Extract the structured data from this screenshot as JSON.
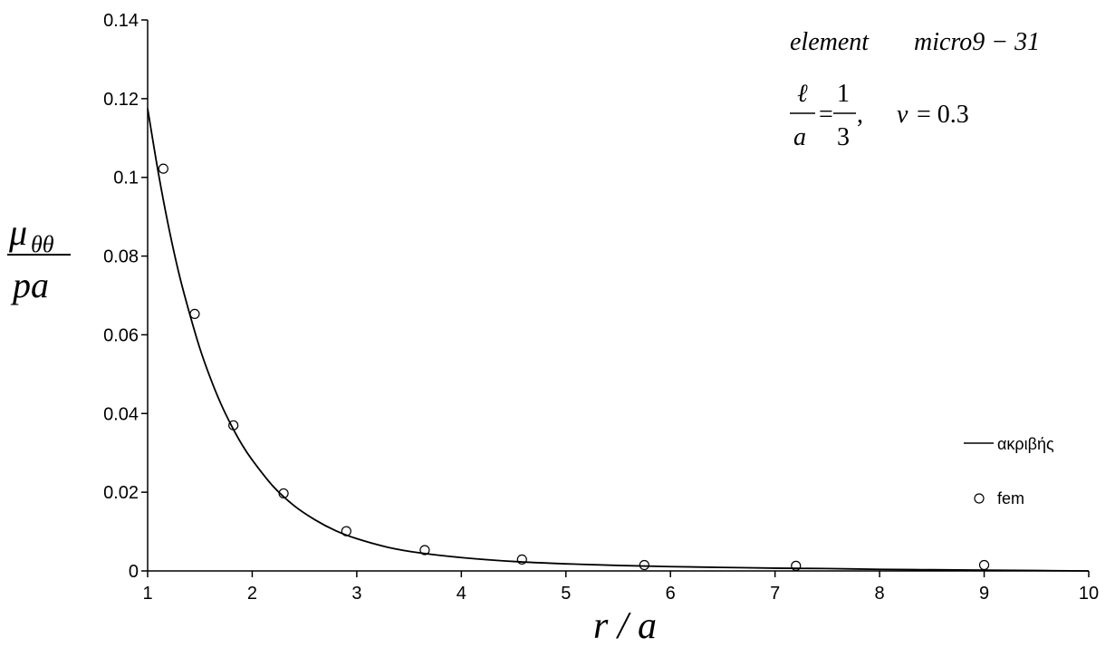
{
  "chart_data": {
    "type": "scatter",
    "xlabel": "r / a",
    "ylabel": {
      "numerator": "μ",
      "subscript": "θθ",
      "denominator": "pa"
    },
    "xlim": [
      1,
      10
    ],
    "ylim": [
      0,
      0.14
    ],
    "x_ticks": [
      "1",
      "2",
      "3",
      "4",
      "5",
      "6",
      "7",
      "8",
      "9",
      "10"
    ],
    "y_ticks": [
      "0",
      "0.02",
      "0.04",
      "0.06",
      "0.08",
      "0.1",
      "0.12",
      "0.14"
    ],
    "grid": false,
    "legend_position": "right",
    "annotations": {
      "element_word": "element",
      "element_name": "micro9 − 31",
      "ell": "ℓ",
      "a": "a",
      "one": "1",
      "three": "3",
      "equals": "=",
      "comma": ",",
      "nu": "ν",
      "nu_value": "= 0.3"
    },
    "series": [
      {
        "name": "ακριβής",
        "style": "line",
        "color": "#000000",
        "x": [
          1.0,
          1.1,
          1.2,
          1.3,
          1.4,
          1.5,
          1.6,
          1.7,
          1.8,
          1.9,
          2.0,
          2.2,
          2.4,
          2.6,
          2.8,
          3.0,
          3.3,
          3.6,
          4.0,
          4.5,
          5.0,
          5.5,
          6.0,
          6.5,
          7.0,
          7.5,
          8.0,
          8.5,
          9.0,
          9.5,
          10.0
        ],
        "y": [
          0.1175,
          0.1015,
          0.0875,
          0.0755,
          0.0655,
          0.0565,
          0.049,
          0.0425,
          0.037,
          0.0322,
          0.0282,
          0.0215,
          0.0166,
          0.013,
          0.0102,
          0.0082,
          0.006,
          0.0046,
          0.0034,
          0.0024,
          0.0018,
          0.0014,
          0.0011,
          0.0009,
          0.0007,
          0.0006,
          0.0004,
          0.0003,
          0.0002,
          0.0001,
          0.0
        ]
      },
      {
        "name": "fem",
        "style": "marker",
        "color": "#000000",
        "x": [
          1.15,
          1.45,
          1.82,
          2.3,
          2.9,
          3.65,
          4.58,
          5.75,
          7.2,
          9.0
        ],
        "y": [
          0.1022,
          0.0653,
          0.037,
          0.0197,
          0.0101,
          0.0053,
          0.0029,
          0.0015,
          0.0013,
          0.0015
        ]
      }
    ]
  }
}
